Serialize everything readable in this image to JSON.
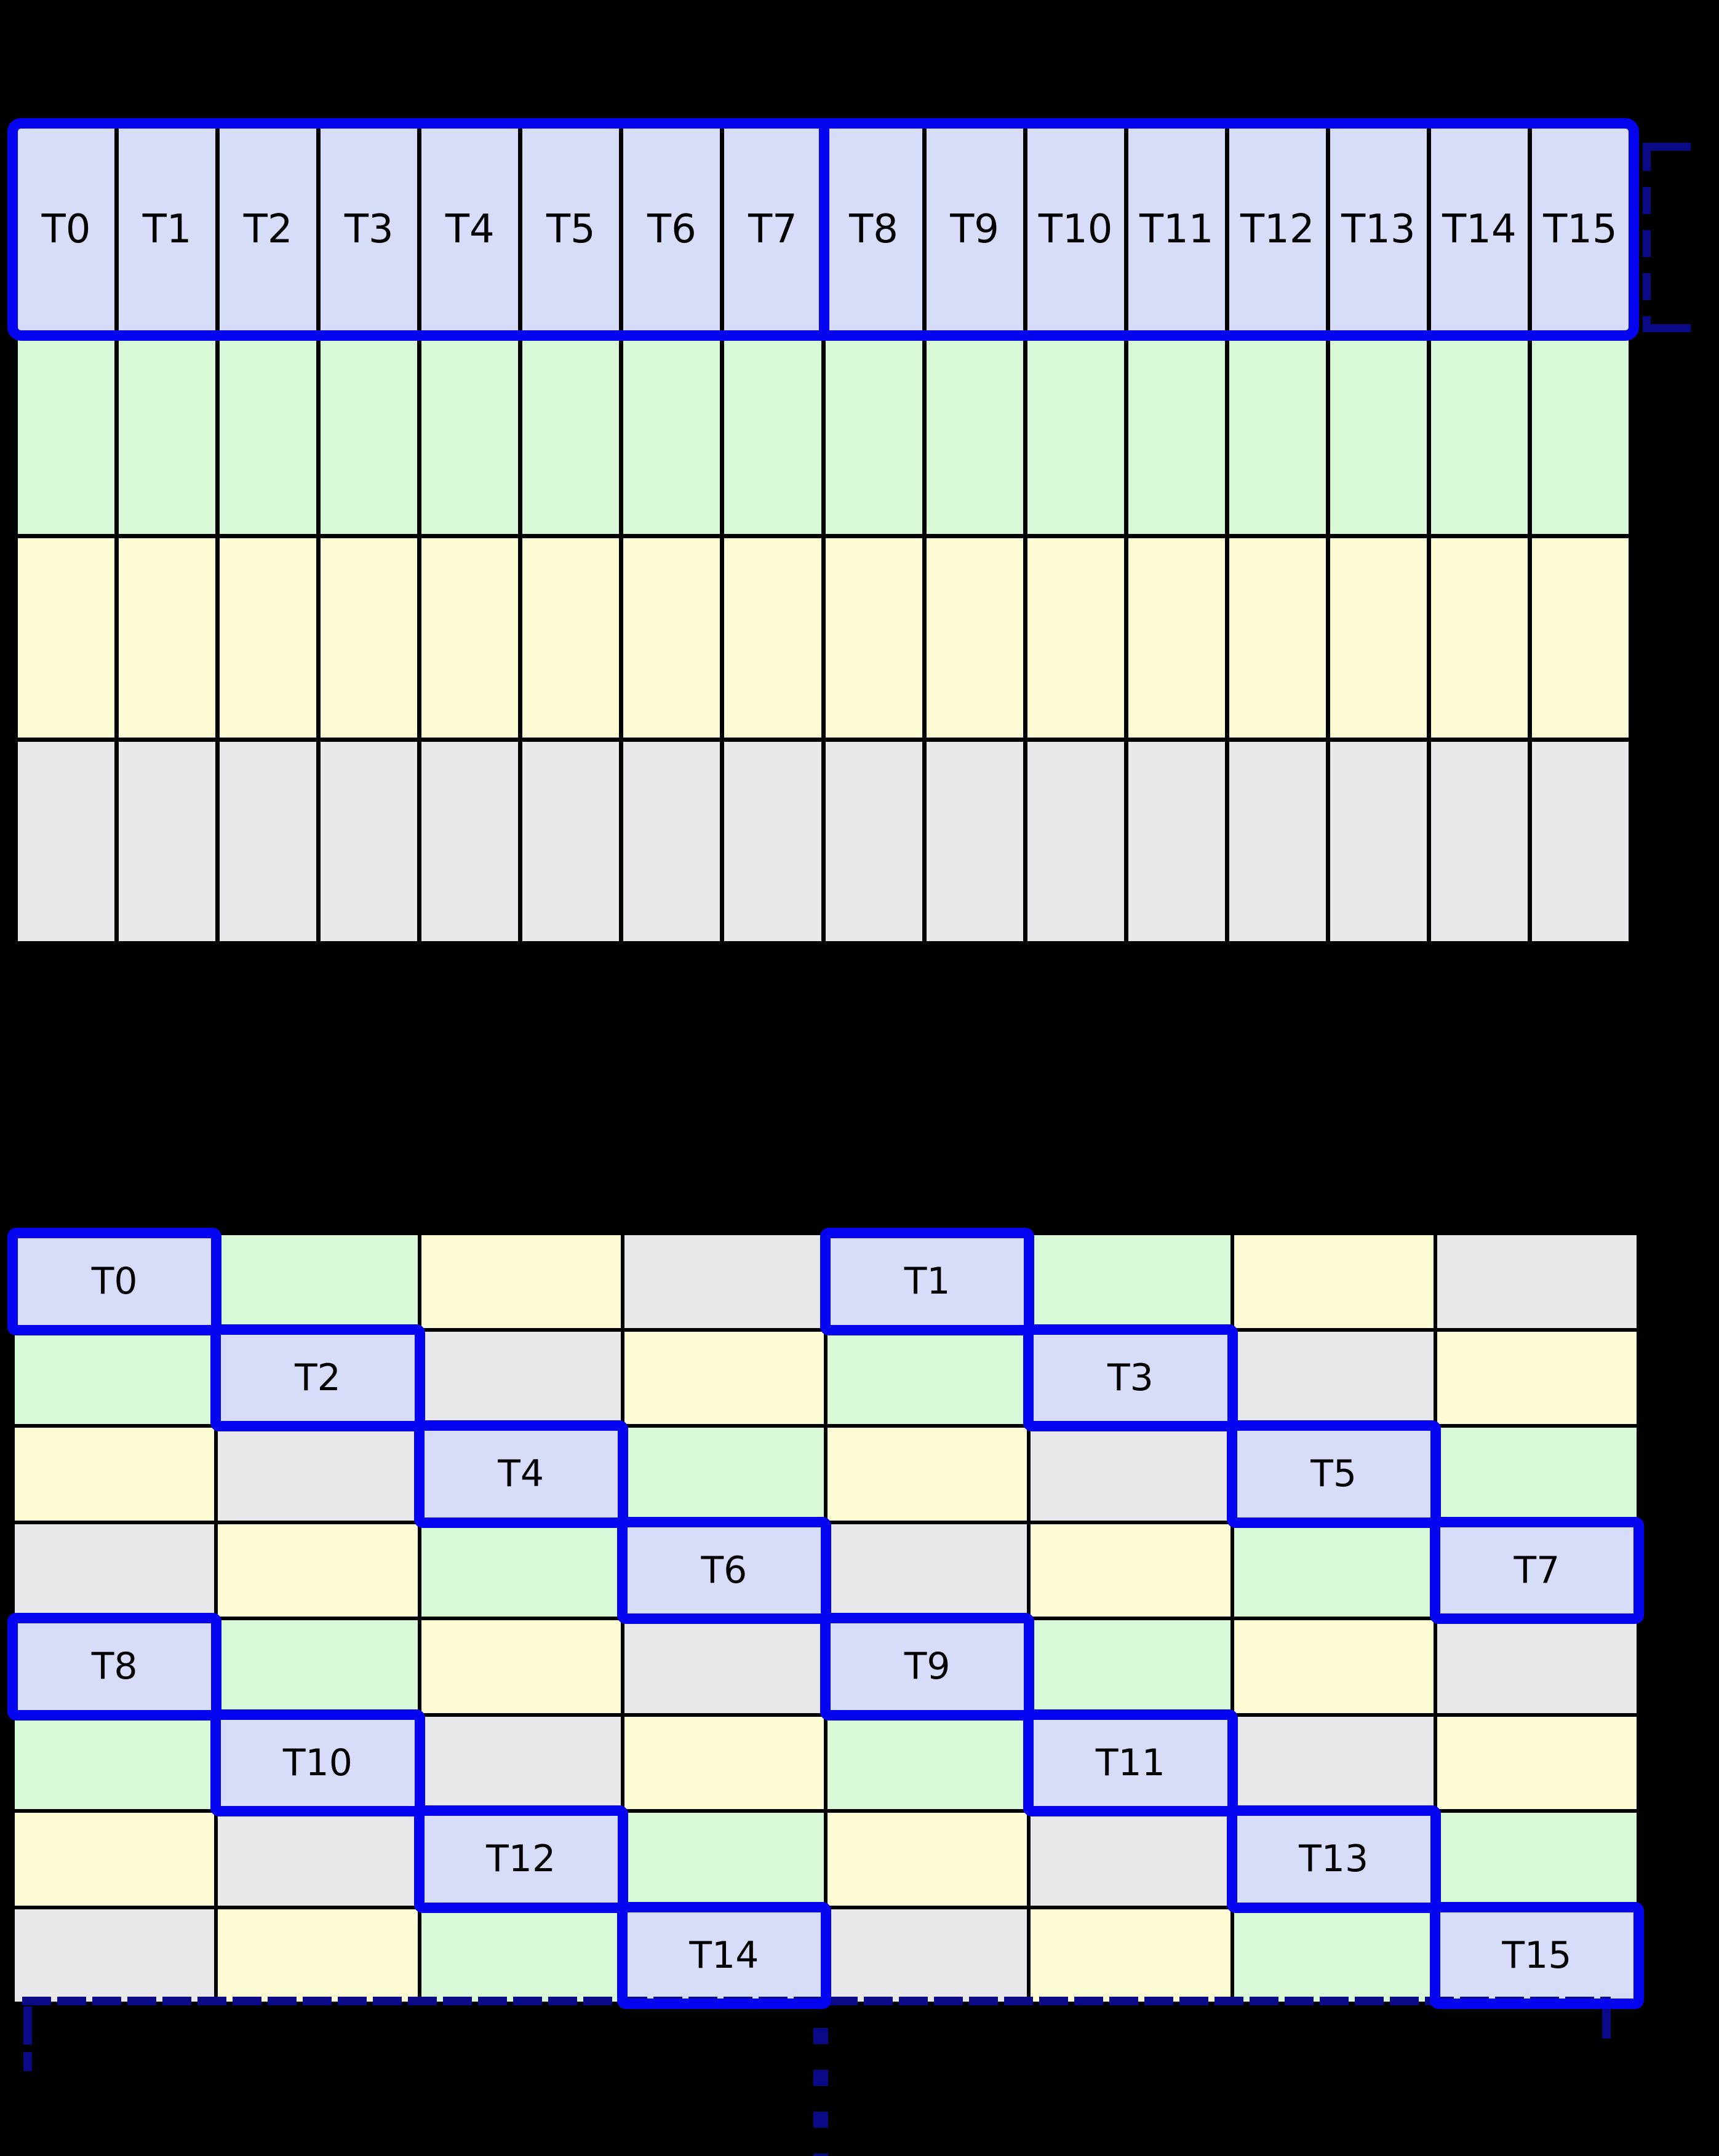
{
  "colors": {
    "background": "#000000",
    "thread": "#d7dcf8",
    "green": "#d8f9d8",
    "yellow": "#fdfcd4",
    "gray": "#e8e8ea",
    "highlight": "#0404ee",
    "navy": "#0a0a87",
    "cell_border": "#000000"
  },
  "top_grid": {
    "columns": 16,
    "thread_labels": [
      "T0",
      "T1",
      "T2",
      "T3",
      "T4",
      "T5",
      "T6",
      "T7",
      "T8",
      "T9",
      "T10",
      "T11",
      "T12",
      "T13",
      "T14",
      "T15"
    ],
    "rows": [
      {
        "name": "thread-row",
        "color": "thread"
      },
      {
        "name": "green-row",
        "color": "green"
      },
      {
        "name": "yellow-row",
        "color": "yellow"
      },
      {
        "name": "gray-row",
        "color": "gray"
      }
    ],
    "warp_groups": 2,
    "threads_per_group": 8
  },
  "bottom_grid": {
    "rows": 8,
    "columns": 8,
    "color_cycle": [
      "thread",
      "green",
      "yellow",
      "gray"
    ],
    "pattern": "xor(row%4, col%4)",
    "highlights": [
      {
        "row": 0,
        "col": 0,
        "label": "T0"
      },
      {
        "row": 0,
        "col": 4,
        "label": "T1"
      },
      {
        "row": 1,
        "col": 1,
        "label": "T2"
      },
      {
        "row": 1,
        "col": 5,
        "label": "T3"
      },
      {
        "row": 2,
        "col": 2,
        "label": "T4"
      },
      {
        "row": 2,
        "col": 6,
        "label": "T5"
      },
      {
        "row": 3,
        "col": 3,
        "label": "T6"
      },
      {
        "row": 3,
        "col": 7,
        "label": "T7"
      },
      {
        "row": 4,
        "col": 0,
        "label": "T8"
      },
      {
        "row": 4,
        "col": 4,
        "label": "T9"
      },
      {
        "row": 5,
        "col": 1,
        "label": "T10"
      },
      {
        "row": 5,
        "col": 5,
        "label": "T11"
      },
      {
        "row": 6,
        "col": 2,
        "label": "T12"
      },
      {
        "row": 6,
        "col": 6,
        "label": "T13"
      },
      {
        "row": 7,
        "col": 3,
        "label": "T14"
      },
      {
        "row": 7,
        "col": 7,
        "label": "T15"
      }
    ]
  },
  "icons": {
    "warp_bracket": "dashed-square-bracket-right",
    "row_bracket": "dashed-bottom-bracket",
    "continuation": "vertical-ellipsis-dots"
  },
  "continuation_dots": 4
}
